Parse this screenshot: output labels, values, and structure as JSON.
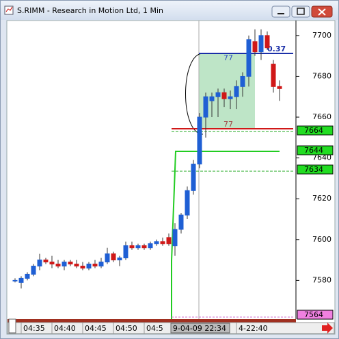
{
  "window_title": "S.RIMM - Research in Motion Ltd, 1 Min",
  "chart_data": {
    "type": "candlestick",
    "up_color": "#1f5fd4",
    "down_color": "#d01818",
    "categories": [
      null,
      "04:35",
      null,
      null,
      null,
      null,
      "04:40",
      null,
      null,
      null,
      null,
      "04:45",
      null,
      null,
      null,
      null,
      "04:50",
      null,
      null,
      null,
      null,
      "04:5",
      null,
      null,
      null,
      null,
      null,
      null,
      null,
      null,
      "9-04-09 22:34",
      null,
      null,
      null,
      null,
      null,
      "4-22:40",
      null,
      null,
      null,
      null,
      null,
      null,
      null
    ],
    "open": [
      7580,
      7579,
      7581,
      7583,
      7587,
      7590,
      7589,
      7588,
      7587,
      7589,
      7588,
      7587,
      7586,
      7588,
      7587,
      7589,
      7593,
      7590,
      7591,
      7597,
      7596,
      7597,
      7596,
      7598,
      7599,
      7601,
      7597,
      7605,
      7612,
      7624,
      7637,
      7660,
      7668,
      7670,
      7672,
      7669,
      7670,
      7675,
      7680,
      7697,
      7692,
      7700,
      7686,
      7675
    ],
    "high": [
      7581,
      7582,
      7584,
      7588,
      7593,
      7591,
      7592,
      7590,
      7590,
      7590,
      7590,
      7589,
      7589,
      7590,
      7591,
      7596,
      7594,
      7592,
      7599,
      7599,
      7598,
      7598,
      7599,
      7600,
      7601,
      7603,
      7608,
      7613,
      7626,
      7639,
      7662,
      7672,
      7672,
      7674,
      7674,
      7673,
      7678,
      7682,
      7700,
      7703,
      7703,
      7702,
      7688,
      7678
    ],
    "low": [
      7579,
      7576,
      7580,
      7582,
      7585,
      7588,
      7586,
      7586,
      7585,
      7587,
      7586,
      7585,
      7585,
      7586,
      7586,
      7588,
      7589,
      7587,
      7590,
      7595,
      7595,
      7595,
      7595,
      7597,
      7597,
      7597,
      7592,
      7603,
      7610,
      7622,
      7635,
      7650,
      7660,
      7660,
      7665,
      7664,
      7664,
      7670,
      7675,
      7690,
      7688,
      7693,
      7672,
      7668
    ],
    "close": [
      7580,
      7581,
      7583,
      7587,
      7590,
      7589,
      7588,
      7587,
      7589,
      7588,
      7587,
      7586,
      7588,
      7587,
      7589,
      7593,
      7590,
      7591,
      7597,
      7596,
      7597,
      7596,
      7598,
      7599,
      7598,
      7598,
      7605,
      7612,
      7624,
      7637,
      7660,
      7670,
      7670,
      7672,
      7669,
      7670,
      7675,
      7680,
      7698,
      7692,
      7700,
      7694,
      7675,
      7674
    ],
    "ylim": [
      7561,
      7707
    ],
    "yticks": [
      7580,
      7600,
      7620,
      7640,
      7660,
      7680,
      7700
    ],
    "price_labels": [
      7664,
      7644,
      7634,
      7564
    ],
    "annotations": [
      "77",
      "77",
      "0.37"
    ]
  }
}
